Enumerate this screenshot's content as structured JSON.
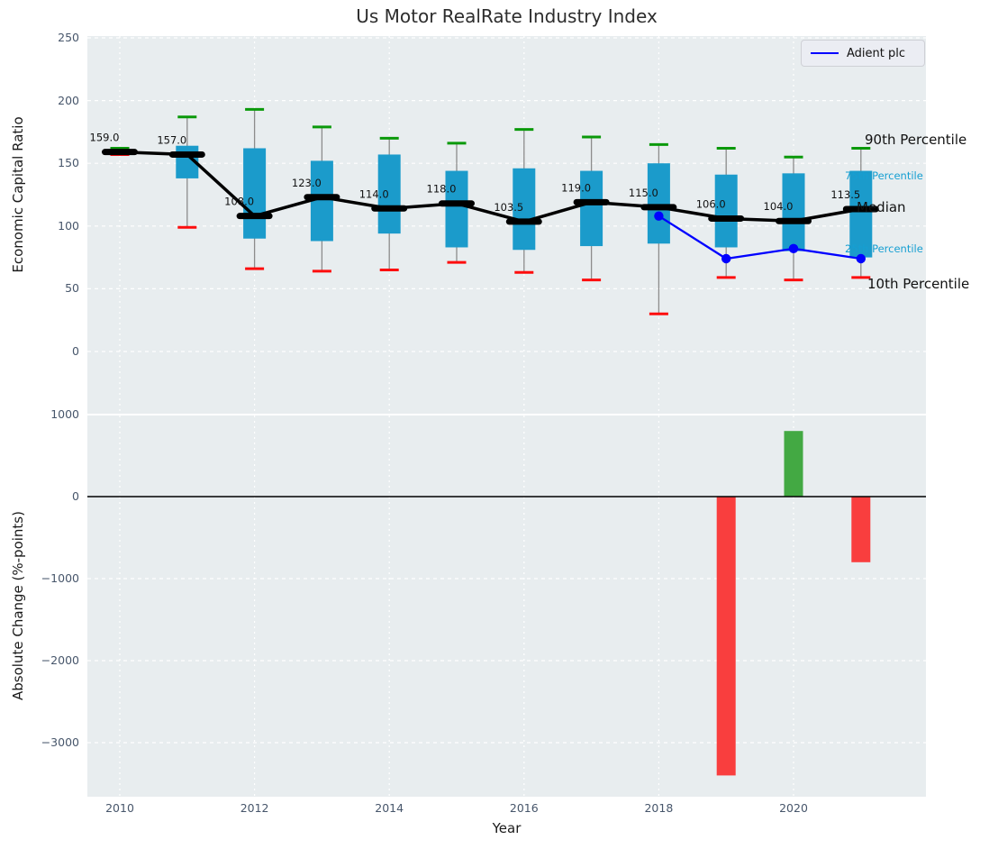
{
  "title": "Us Motor RealRate Industry Index",
  "legend": {
    "label": "Adient plc",
    "line_color": "#0000ff"
  },
  "axes": {
    "top": {
      "ylabel": "Economic Capital Ratio",
      "yticks": [
        250,
        200,
        150,
        100,
        50,
        0
      ]
    },
    "bottom": {
      "ylabel": "Absolute Change (%-points)",
      "xlabel": "Year",
      "yticks": [
        1000,
        0,
        -1000,
        -2000,
        -3000
      ],
      "xticks": [
        2010,
        2012,
        2014,
        2016,
        2018,
        2020
      ]
    }
  },
  "right_labels": [
    {
      "text": "90th Percentile",
      "style": "big"
    },
    {
      "text": "75th Percentile",
      "style": "cyan"
    },
    {
      "text": "Median",
      "style": "big"
    },
    {
      "text": "25th Percentile",
      "style": "cyan"
    },
    {
      "text": "10th Percentile",
      "style": "big"
    }
  ],
  "colors": {
    "box": "#1b9bcb",
    "cap_p90": "#0a990a",
    "cap_p10": "#fd0d0d",
    "median": "#000000",
    "stem": "#8c8c8c",
    "adient": "#0000ff",
    "bar_pos": "#43a943",
    "bar_neg": "#f93e3e",
    "grid": "#ffffff",
    "panel_bg": "#e8edef",
    "tick_text": "#47566b",
    "cyan_label": "#169fd2"
  },
  "chart_data": [
    {
      "type": "box",
      "title": "Us Motor RealRate Industry Index",
      "ylabel": "Economic Capital Ratio",
      "ylim": [
        -48,
        251
      ],
      "grid": true,
      "categories": [
        2010,
        2011,
        2012,
        2013,
        2014,
        2015,
        2016,
        2017,
        2018,
        2019,
        2020,
        2021
      ],
      "series": {
        "p90": [
          162,
          187,
          193,
          179,
          170,
          166,
          177,
          171,
          165,
          162,
          155,
          162
        ],
        "p75": [
          160,
          164,
          162,
          152,
          157,
          144,
          146,
          144,
          150,
          141,
          142,
          144
        ],
        "median": [
          159.0,
          157.0,
          108.0,
          123.0,
          114.0,
          118.0,
          103.5,
          119.0,
          115.0,
          106.0,
          104.0,
          113.5
        ],
        "p25": [
          158,
          138,
          90,
          88,
          94,
          83,
          81,
          84,
          86,
          83,
          80,
          75
        ],
        "p10": [
          157,
          99,
          66,
          64,
          65,
          71,
          63,
          57,
          30,
          59,
          57,
          59
        ]
      },
      "median_labels": [
        "159.0",
        "157.0",
        "108.0",
        "123.0",
        "114.0",
        "118.0",
        "103.5",
        "119.0",
        "115.0",
        "106.0",
        "104.0",
        "113.5"
      ],
      "overlay_line": {
        "name": "Adient plc",
        "color": "#0000ff",
        "x": [
          2018,
          2019,
          2020,
          2021
        ],
        "y": [
          108,
          74,
          82,
          74
        ]
      }
    },
    {
      "type": "bar",
      "ylabel": "Absolute Change (%-points)",
      "xlabel": "Year",
      "ylim": [
        -3670,
        1255
      ],
      "grid": true,
      "x": [
        2019,
        2020,
        2021
      ],
      "values": [
        -3400,
        800,
        -800
      ]
    }
  ]
}
